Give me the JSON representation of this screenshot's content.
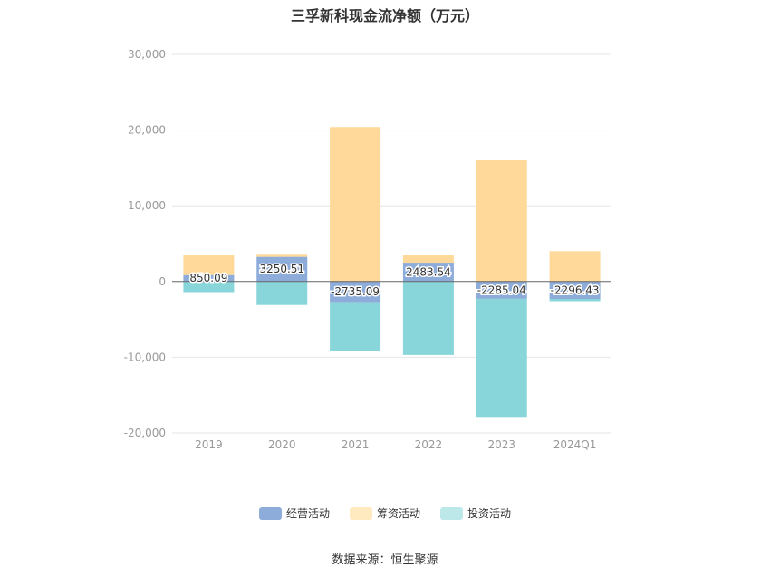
{
  "page": {
    "source_label": "数据来源：恒生聚源"
  },
  "chart_data": {
    "type": "bar",
    "stacked": true,
    "title": "三孚新科现金流净额（万元）",
    "categories": [
      "2019",
      "2020",
      "2021",
      "2022",
      "2023",
      "2024Q1"
    ],
    "ylim": [
      -20000,
      30000
    ],
    "yticks": [
      30000,
      20000,
      10000,
      0,
      -10000,
      -20000
    ],
    "ytick_labels": [
      "30,000",
      "20,000",
      "10,000",
      "0",
      "-10,000",
      "-20,000"
    ],
    "grid": true,
    "legend_position": "bottom",
    "series": [
      {
        "name": "经营活动",
        "color": "#8eacd9",
        "values": [
          850.09,
          3250.51,
          -2735.09,
          2483.54,
          -2285.04,
          -2296.43
        ],
        "labels": [
          "850.09",
          "3250.51",
          "-2735.09",
          "2483.54",
          "-2285.04",
          "-2296.43"
        ]
      },
      {
        "name": "筹资活动",
        "color": "#ffd99a",
        "values": [
          2700,
          400,
          20400,
          1000,
          16000,
          4000
        ]
      },
      {
        "name": "投资活动",
        "color": "#88d6d9",
        "values": [
          -1400,
          -3100,
          -6400,
          -9700,
          -15600,
          -300
        ]
      }
    ]
  }
}
